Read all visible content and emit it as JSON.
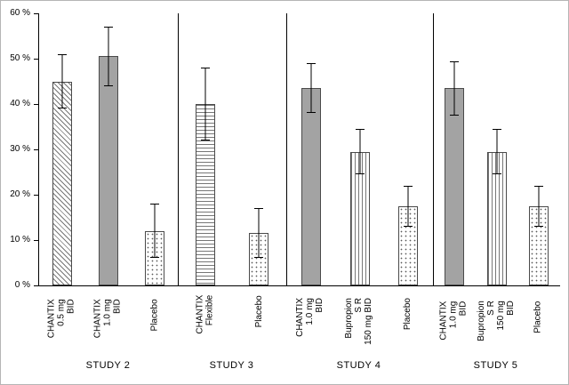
{
  "chart_data": {
    "type": "bar",
    "title": "",
    "xlabel": "",
    "ylabel": "",
    "ylim": [
      0,
      60
    ],
    "grid": false,
    "legend": "none",
    "ytick_labels": [
      "0 %",
      "10 %",
      "20 %",
      "30 %",
      "40 %",
      "50 %",
      "60 %"
    ],
    "groups": [
      {
        "label": "STUDY 2",
        "flex": 157,
        "bars": [
          {
            "label": "CHANTIX 0.5 mg\nBID",
            "value": 45,
            "error": 6,
            "pattern": "diagonal"
          },
          {
            "label": "CHANTIX 1.0 mg\nBID",
            "value": 50.5,
            "error": 6.5,
            "pattern": "solid"
          },
          {
            "label": "Placebo",
            "value": 12,
            "error": 6,
            "pattern": "dots"
          }
        ]
      },
      {
        "label": "STUDY 3",
        "flex": 121,
        "bars": [
          {
            "label": "CHANTIX Flexible",
            "value": 40,
            "error": 8,
            "pattern": "hlines"
          },
          {
            "label": "Placebo",
            "value": 11.5,
            "error": 5.5,
            "pattern": "dots"
          }
        ]
      },
      {
        "label": "STUDY 4",
        "flex": 165,
        "bars": [
          {
            "label": "CHANTIX 1.0 mg\nBID",
            "value": 43.5,
            "error": 5.5,
            "pattern": "solid"
          },
          {
            "label": "Bupropion S R\n150 mg BID",
            "value": 29.5,
            "error": 5,
            "pattern": "vlines"
          },
          {
            "label": "Placebo",
            "value": 17.5,
            "error": 4.5,
            "pattern": "dots"
          }
        ]
      },
      {
        "label": "STUDY 5",
        "flex": 143,
        "bars": [
          {
            "label": "CHANTIX 1.0 mg\nBID",
            "value": 43.5,
            "error": 6,
            "pattern": "solid"
          },
          {
            "label": "Bupropion S R\n150 mg BID",
            "value": 29.5,
            "error": 5,
            "pattern": "vlines"
          },
          {
            "label": "Placebo",
            "value": 17.5,
            "error": 4.5,
            "pattern": "dots"
          }
        ]
      }
    ],
    "colors": {
      "bar_solid_fill": "#a3a3a3",
      "bar_border": "#4a4a4a",
      "axis": "#000000",
      "background": "#ffffff"
    }
  }
}
